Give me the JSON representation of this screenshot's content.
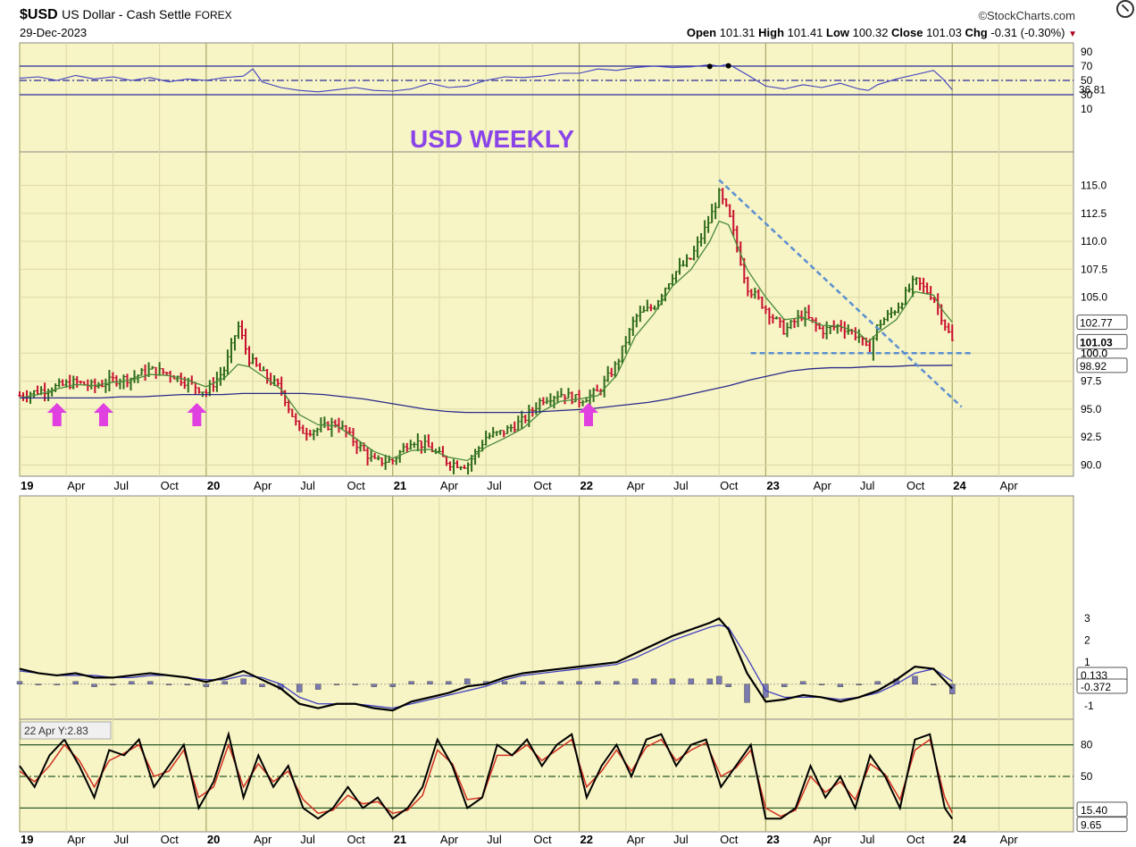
{
  "header": {
    "symbol": "$USD",
    "description": "US Dollar - Cash Settle",
    "exchange": "FOREX",
    "date": "29-Dec-2023",
    "brand": "©StockCharts.com",
    "open_label": "Open",
    "open": "101.31",
    "high_label": "High",
    "high": "101.41",
    "low_label": "Low",
    "low": "100.32",
    "close_label": "Close",
    "close": "101.03",
    "chg_label": "Chg",
    "chg": "-0.31 (-0.30%)"
  },
  "annotation": {
    "title": "USD WEEKLY",
    "title_color": "#8a44e8"
  },
  "tooltip": {
    "text": "22 Apr Y:2.83"
  },
  "colors": {
    "background": "#f7f4c5",
    "up": "#2e6b1a",
    "down": "#c8102e",
    "ma_short": "#4a8a3a",
    "ma_long": "#2a2a8a",
    "indicator": "#4040c0",
    "trendline": "#5b8fd0",
    "arrow": "#e040e0",
    "stoch_k": "#000000",
    "stoch_d": "#d03020"
  },
  "chart_data": [
    {
      "type": "line",
      "name": "RSI",
      "y_ticks": [
        "90",
        "70",
        "50",
        "30",
        "10"
      ],
      "levels": [
        70,
        50,
        30
      ],
      "ylim": [
        0,
        100
      ],
      "last_value": "36.81",
      "x": [
        2019.0,
        2019.1,
        2019.2,
        2019.3,
        2019.4,
        2019.5,
        2019.6,
        2019.7,
        2019.8,
        2019.9,
        2020.0,
        2020.1,
        2020.2,
        2020.25,
        2020.3,
        2020.4,
        2020.5,
        2020.6,
        2020.7,
        2020.8,
        2020.9,
        2021.0,
        2021.1,
        2021.2,
        2021.3,
        2021.4,
        2021.5,
        2021.6,
        2021.7,
        2021.8,
        2021.9,
        2022.0,
        2022.1,
        2022.2,
        2022.3,
        2022.4,
        2022.5,
        2022.6,
        2022.7,
        2022.75,
        2022.8,
        2022.9,
        2023.0,
        2023.1,
        2023.2,
        2023.3,
        2023.4,
        2023.5,
        2023.55,
        2023.6,
        2023.7,
        2023.8,
        2023.9,
        2023.95,
        2024.0
      ],
      "values": [
        53,
        55,
        50,
        57,
        52,
        55,
        50,
        54,
        48,
        52,
        50,
        54,
        56,
        66,
        48,
        40,
        36,
        34,
        37,
        40,
        36,
        35,
        38,
        46,
        40,
        42,
        50,
        55,
        54,
        56,
        60,
        60,
        66,
        64,
        68,
        70,
        68,
        69,
        72,
        70,
        73,
        58,
        42,
        38,
        44,
        40,
        46,
        38,
        36,
        44,
        52,
        58,
        64,
        52,
        37
      ]
    },
    {
      "type": "bar",
      "name": "Price",
      "y_ticks": [
        "115.0",
        "112.5",
        "110.0",
        "107.5",
        "105.0",
        "100.0",
        "97.5",
        "95.0",
        "92.5",
        "90.0"
      ],
      "ylim": [
        89,
        118
      ],
      "labels": {
        "ma_short_last": "102.77",
        "close_last": "101.03",
        "support": "100.0",
        "ma_long_last": "98.92"
      },
      "close_x": [
        2019.0,
        2019.1,
        2019.2,
        2019.3,
        2019.4,
        2019.5,
        2019.6,
        2019.7,
        2019.8,
        2019.9,
        2020.0,
        2020.1,
        2020.17,
        2020.23,
        2020.3,
        2020.4,
        2020.5,
        2020.6,
        2020.7,
        2020.8,
        2020.9,
        2021.0,
        2021.1,
        2021.2,
        2021.3,
        2021.4,
        2021.5,
        2021.6,
        2021.7,
        2021.8,
        2021.9,
        2022.0,
        2022.1,
        2022.2,
        2022.3,
        2022.4,
        2022.5,
        2022.6,
        2022.7,
        2022.75,
        2022.8,
        2022.9,
        2023.0,
        2023.1,
        2023.2,
        2023.3,
        2023.4,
        2023.5,
        2023.55,
        2023.6,
        2023.7,
        2023.8,
        2023.9,
        2023.95,
        2024.0
      ],
      "close": [
        96.2,
        96.6,
        97.0,
        97.4,
        97.0,
        97.6,
        97.8,
        98.5,
        98.2,
        97.4,
        96.5,
        98.6,
        102.5,
        99.5,
        98.2,
        96.8,
        93.0,
        93.2,
        93.8,
        92.0,
        90.3,
        90.4,
        92.3,
        91.5,
        90.2,
        90.0,
        92.5,
        93.0,
        94.0,
        95.9,
        96.4,
        95.8,
        96.5,
        99.0,
        103.2,
        104.2,
        107.0,
        108.5,
        112.0,
        114.2,
        112.5,
        106.0,
        104.0,
        102.0,
        103.5,
        102.0,
        102.5,
        101.5,
        100.0,
        102.5,
        104.0,
        106.5,
        105.0,
        103.0,
        101.03
      ],
      "ma_short": [
        96.0,
        96.3,
        96.8,
        97.2,
        97.1,
        97.4,
        97.6,
        98.1,
        98.0,
        97.6,
        97.0,
        97.8,
        99.0,
        98.8,
        98.0,
        96.8,
        94.5,
        93.6,
        93.5,
        92.4,
        91.2,
        90.6,
        91.3,
        91.4,
        90.7,
        90.4,
        91.6,
        92.4,
        93.3,
        94.8,
        95.7,
        95.9,
        96.2,
        98.0,
        101.5,
        103.5,
        106.0,
        107.5,
        110.0,
        111.8,
        111.5,
        107.5,
        105.0,
        103.0,
        103.2,
        102.5,
        102.4,
        101.8,
        101.0,
        101.8,
        103.0,
        105.5,
        105.2,
        103.8,
        102.77
      ],
      "ma_long": [
        96.0,
        96.0,
        96.0,
        96.0,
        96.0,
        96.1,
        96.1,
        96.2,
        96.3,
        96.3,
        96.3,
        96.4,
        96.4,
        96.4,
        96.4,
        96.3,
        96.1,
        95.9,
        95.6,
        95.3,
        95.0,
        94.8,
        94.7,
        94.7,
        94.7,
        94.7,
        94.8,
        94.9,
        95.0,
        95.2,
        95.4,
        95.6,
        95.9,
        96.3,
        96.7,
        97.1,
        97.6,
        98.0,
        98.4,
        98.6,
        98.7,
        98.7,
        98.8,
        98.8,
        98.9,
        98.9,
        98.92
      ],
      "support_level": 100.0,
      "downtrend_from": {
        "date": "2022.75",
        "value": 115.5
      },
      "downtrend_to": {
        "date": "2024.05",
        "value": 95.2
      },
      "arrow_dates": [
        2019.2,
        2019.45,
        2019.95,
        2022.05
      ]
    },
    {
      "type": "line",
      "name": "MACD",
      "y_ticks": [
        "3",
        "2",
        "1",
        "-1"
      ],
      "ylim": [
        -1.4,
        3.5
      ],
      "labels": {
        "signal_last": "0.133",
        "hist_last": "-0.372"
      },
      "x": [
        2019.0,
        2019.1,
        2019.2,
        2019.3,
        2019.4,
        2019.5,
        2019.6,
        2019.7,
        2019.8,
        2019.9,
        2020.0,
        2020.1,
        2020.2,
        2020.3,
        2020.4,
        2020.5,
        2020.6,
        2020.7,
        2020.8,
        2020.9,
        2021.0,
        2021.1,
        2021.2,
        2021.3,
        2021.4,
        2021.5,
        2021.6,
        2021.7,
        2021.8,
        2021.9,
        2022.0,
        2022.1,
        2022.2,
        2022.3,
        2022.4,
        2022.5,
        2022.6,
        2022.7,
        2022.75,
        2022.8,
        2022.9,
        2023.0,
        2023.1,
        2023.2,
        2023.3,
        2023.4,
        2023.5,
        2023.6,
        2023.7,
        2023.8,
        2023.9,
        2024.0
      ],
      "macd": [
        0.7,
        0.5,
        0.4,
        0.5,
        0.3,
        0.3,
        0.4,
        0.5,
        0.4,
        0.3,
        0.1,
        0.3,
        0.6,
        0.2,
        -0.2,
        -0.9,
        -1.1,
        -0.9,
        -0.9,
        -1.1,
        -1.2,
        -0.8,
        -0.6,
        -0.4,
        -0.1,
        0.0,
        0.3,
        0.5,
        0.6,
        0.7,
        0.8,
        0.9,
        1.0,
        1.4,
        1.8,
        2.2,
        2.5,
        2.8,
        3.0,
        2.5,
        0.5,
        -0.8,
        -0.7,
        -0.5,
        -0.6,
        -0.8,
        -0.6,
        -0.3,
        0.2,
        0.8,
        0.7,
        -0.2
      ],
      "signal": [
        0.6,
        0.5,
        0.4,
        0.4,
        0.4,
        0.3,
        0.3,
        0.4,
        0.4,
        0.3,
        0.2,
        0.2,
        0.4,
        0.3,
        0.0,
        -0.6,
        -0.9,
        -0.9,
        -0.9,
        -1.0,
        -1.1,
        -0.9,
        -0.7,
        -0.5,
        -0.3,
        -0.1,
        0.2,
        0.4,
        0.5,
        0.6,
        0.7,
        0.8,
        0.9,
        1.2,
        1.6,
        2.0,
        2.3,
        2.6,
        2.7,
        2.6,
        1.2,
        -0.3,
        -0.6,
        -0.6,
        -0.6,
        -0.7,
        -0.6,
        -0.4,
        0.0,
        0.5,
        0.7,
        0.133
      ],
      "histogram": [
        0.1,
        0.0,
        0.0,
        0.1,
        -0.1,
        0.0,
        0.1,
        0.1,
        0.0,
        0.0,
        -0.1,
        0.1,
        0.2,
        -0.1,
        -0.2,
        -0.3,
        -0.2,
        0.0,
        0.0,
        -0.1,
        -0.1,
        0.1,
        0.1,
        0.1,
        0.2,
        0.1,
        0.1,
        0.1,
        0.1,
        0.1,
        0.1,
        0.1,
        0.1,
        0.2,
        0.2,
        0.2,
        0.2,
        0.2,
        0.3,
        -0.1,
        -0.7,
        -0.5,
        -0.1,
        0.1,
        0.0,
        -0.1,
        0.0,
        0.1,
        0.2,
        0.3,
        0.0,
        -0.372
      ]
    },
    {
      "type": "line",
      "name": "Stochastic",
      "y_ticks": [
        "80",
        "50"
      ],
      "levels": [
        80,
        50,
        20
      ],
      "ylim": [
        0,
        100
      ],
      "labels": {
        "d_last": "15.40",
        "k_last": "9.65"
      },
      "x": [
        2019.0,
        2019.08,
        2019.16,
        2019.24,
        2019.32,
        2019.4,
        2019.48,
        2019.56,
        2019.64,
        2019.72,
        2019.8,
        2019.88,
        2019.96,
        2020.04,
        2020.12,
        2020.2,
        2020.28,
        2020.36,
        2020.44,
        2020.52,
        2020.6,
        2020.68,
        2020.76,
        2020.84,
        2020.92,
        2021.0,
        2021.08,
        2021.16,
        2021.24,
        2021.32,
        2021.4,
        2021.48,
        2021.56,
        2021.64,
        2021.72,
        2021.8,
        2021.88,
        2021.96,
        2022.04,
        2022.12,
        2022.2,
        2022.28,
        2022.36,
        2022.44,
        2022.52,
        2022.6,
        2022.68,
        2022.76,
        2022.84,
        2022.92,
        2023.0,
        2023.08,
        2023.16,
        2023.24,
        2023.32,
        2023.4,
        2023.48,
        2023.56,
        2023.64,
        2023.72,
        2023.8,
        2023.88,
        2023.96,
        2024.0
      ],
      "k": [
        60,
        40,
        70,
        85,
        60,
        30,
        75,
        70,
        85,
        40,
        60,
        80,
        20,
        45,
        90,
        30,
        70,
        40,
        60,
        20,
        10,
        20,
        40,
        20,
        30,
        10,
        20,
        40,
        85,
        60,
        20,
        30,
        80,
        70,
        85,
        60,
        80,
        90,
        30,
        60,
        80,
        50,
        85,
        90,
        60,
        80,
        85,
        40,
        60,
        80,
        10,
        10,
        20,
        60,
        30,
        50,
        20,
        70,
        50,
        20,
        85,
        90,
        20,
        9.65
      ],
      "d": [
        55,
        45,
        60,
        80,
        65,
        40,
        65,
        72,
        80,
        50,
        55,
        75,
        30,
        40,
        80,
        40,
        62,
        45,
        55,
        28,
        15,
        18,
        32,
        24,
        26,
        15,
        18,
        32,
        75,
        62,
        28,
        30,
        70,
        70,
        80,
        65,
        75,
        85,
        40,
        55,
        75,
        55,
        78,
        85,
        65,
        75,
        82,
        50,
        58,
        75,
        20,
        12,
        18,
        50,
        35,
        45,
        28,
        62,
        52,
        28,
        75,
        85,
        30,
        15.4
      ]
    }
  ],
  "x_axis": {
    "labels": [
      "19",
      "Apr",
      "Jul",
      "Oct",
      "20",
      "Apr",
      "Jul",
      "Oct",
      "21",
      "Apr",
      "Jul",
      "Oct",
      "22",
      "Apr",
      "Jul",
      "Oct",
      "23",
      "Apr",
      "Jul",
      "Oct",
      "24",
      "Apr"
    ]
  }
}
